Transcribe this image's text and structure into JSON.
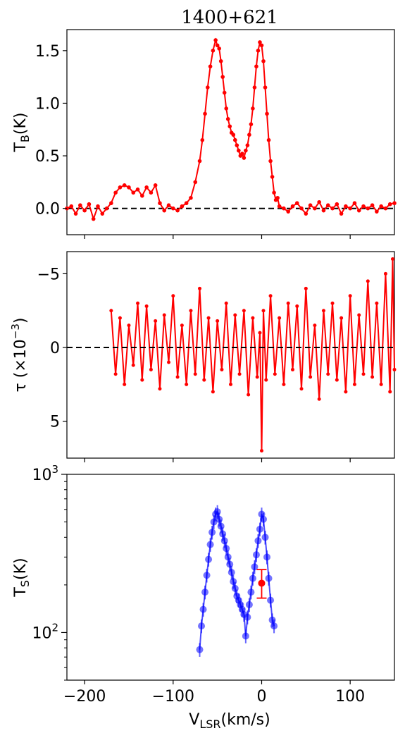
{
  "figure": {
    "title": "1400+621",
    "x_label_main": "V",
    "x_label_sub": "LSR",
    "x_label_unit": "(km/s)"
  },
  "colors": {
    "tb": "#ff0000",
    "tau": "#ff0000",
    "ts": "#0000ff",
    "ts_point": "#ff0000",
    "zero_line": "#000000"
  },
  "chart_data": [
    {
      "panel": "top",
      "type": "line",
      "ylabel_main": "T",
      "ylabel_sub": "B",
      "ylabel_unit": "(K)",
      "xlim": [
        -220,
        150
      ],
      "ylim": [
        -0.25,
        1.7
      ],
      "yticks": [
        0.0,
        0.5,
        1.0,
        1.5
      ],
      "ytick_labels": [
        "0.0",
        "0.5",
        "1.0",
        "1.5"
      ],
      "xticks": [
        -200,
        -100,
        0,
        100
      ],
      "zero_line": true,
      "series": [
        {
          "x": [
            -220,
            -215,
            -210,
            -205,
            -200,
            -195,
            -190,
            -185,
            -180,
            -175,
            -170,
            -165,
            -160,
            -155,
            -150,
            -145,
            -140,
            -135,
            -130,
            -125,
            -120,
            -115,
            -110,
            -105,
            -100,
            -95,
            -90,
            -85,
            -80,
            -75,
            -70,
            -67,
            -64,
            -61,
            -58,
            -55,
            -52,
            -50,
            -48,
            -46,
            -44,
            -42,
            -40,
            -38,
            -36,
            -34,
            -32,
            -30,
            -28,
            -26,
            -24,
            -22,
            -20,
            -18,
            -16,
            -14,
            -12,
            -10,
            -8,
            -6,
            -4,
            -2,
            0,
            2,
            4,
            6,
            8,
            10,
            12,
            14,
            16,
            18,
            20,
            25,
            30,
            35,
            40,
            45,
            50,
            55,
            60,
            65,
            70,
            75,
            80,
            85,
            90,
            95,
            100,
            105,
            110,
            115,
            120,
            125,
            130,
            135,
            140,
            145,
            150
          ],
          "y": [
            0.0,
            0.02,
            -0.05,
            0.03,
            -0.02,
            0.04,
            -0.1,
            0.02,
            -0.05,
            0.0,
            0.05,
            0.15,
            0.2,
            0.22,
            0.2,
            0.15,
            0.18,
            0.12,
            0.2,
            0.15,
            0.22,
            0.05,
            -0.02,
            0.03,
            0.0,
            -0.02,
            0.02,
            0.05,
            0.1,
            0.25,
            0.45,
            0.65,
            0.9,
            1.15,
            1.35,
            1.5,
            1.6,
            1.55,
            1.52,
            1.4,
            1.25,
            1.1,
            0.95,
            0.85,
            0.78,
            0.72,
            0.7,
            0.65,
            0.6,
            0.55,
            0.5,
            0.52,
            0.48,
            0.55,
            0.6,
            0.7,
            0.8,
            0.95,
            1.15,
            1.35,
            1.5,
            1.58,
            1.55,
            1.4,
            1.15,
            0.9,
            0.65,
            0.45,
            0.3,
            0.15,
            0.08,
            0.1,
            0.02,
            0.0,
            -0.03,
            0.02,
            0.05,
            0.0,
            -0.05,
            0.03,
            0.0,
            0.06,
            -0.02,
            0.03,
            0.0,
            0.04,
            -0.05,
            0.02,
            0.0,
            0.05,
            -0.02,
            0.02,
            0.0,
            0.03,
            -0.03,
            0.02,
            0.0,
            0.04,
            0.05
          ]
        }
      ]
    },
    {
      "panel": "middle",
      "type": "line",
      "ylabel": "τ (×10",
      "ylabel_sup": "−3",
      "ylabel_close": ")",
      "xlim": [
        -220,
        150
      ],
      "ylim": [
        7.5,
        -6.5
      ],
      "yticks": [
        -5,
        0,
        5
      ],
      "ytick_labels": [
        "−5",
        "0",
        "5"
      ],
      "xticks": [
        -200,
        -100,
        0,
        100
      ],
      "zero_line": true,
      "series": [
        {
          "x": [
            -170,
            -165,
            -160,
            -155,
            -150,
            -145,
            -140,
            -135,
            -130,
            -125,
            -120,
            -115,
            -110,
            -105,
            -100,
            -95,
            -90,
            -85,
            -80,
            -75,
            -70,
            -65,
            -60,
            -55,
            -50,
            -45,
            -40,
            -35,
            -30,
            -25,
            -20,
            -15,
            -10,
            -5,
            -2,
            0,
            2,
            5,
            10,
            15,
            20,
            25,
            30,
            35,
            40,
            45,
            50,
            55,
            60,
            65,
            70,
            75,
            80,
            85,
            90,
            95,
            100,
            105,
            110,
            115,
            120,
            125,
            130,
            135,
            140,
            145,
            148,
            150
          ],
          "y": [
            -2.5,
            1.8,
            -2.0,
            2.5,
            -1.5,
            1.2,
            -3.0,
            2.2,
            -2.8,
            1.5,
            -1.8,
            2.8,
            -2.2,
            1.0,
            -3.5,
            2.0,
            -1.5,
            2.5,
            -2.5,
            1.8,
            -4.0,
            2.2,
            -2.0,
            3.0,
            -1.8,
            1.5,
            -3.0,
            2.5,
            -2.2,
            1.8,
            -2.5,
            3.2,
            -2.0,
            2.0,
            -1.0,
            7.0,
            -2.5,
            2.2,
            -3.5,
            1.8,
            -2.0,
            2.5,
            -3.0,
            1.5,
            -2.8,
            2.8,
            -4.0,
            2.0,
            -1.5,
            3.5,
            -2.5,
            1.8,
            -3.0,
            2.2,
            -2.0,
            3.0,
            -3.5,
            2.5,
            -2.2,
            1.8,
            -4.5,
            2.0,
            -3.0,
            2.5,
            -5.0,
            3.0,
            -6.0,
            1.5
          ]
        }
      ]
    },
    {
      "panel": "bottom",
      "type": "scatter",
      "ylabel_main": "T",
      "ylabel_sub": "S",
      "ylabel_unit": "(K)",
      "yscale": "log",
      "xlim": [
        -220,
        150
      ],
      "ylim": [
        50,
        1000
      ],
      "ytick_main": [
        100,
        1000
      ],
      "ytick_base": "10",
      "ytick_exps": [
        "2",
        "3"
      ],
      "xticks": [
        -200,
        -100,
        0,
        100
      ],
      "xtick_labels": [
        "−200",
        "−100",
        "0",
        "100"
      ],
      "series": [
        {
          "x": [
            -70,
            -68,
            -66,
            -64,
            -62,
            -60,
            -58,
            -56,
            -54,
            -52,
            -50,
            -48,
            -46,
            -44,
            -42,
            -40,
            -38,
            -36,
            -34,
            -32,
            -30,
            -28,
            -26,
            -24,
            -22,
            -20,
            -18,
            -16,
            -14,
            -12,
            -10,
            -8,
            -6,
            -4,
            -2,
            0,
            2,
            4,
            6,
            8,
            10,
            12,
            14
          ],
          "y": [
            78,
            110,
            140,
            180,
            230,
            290,
            360,
            430,
            500,
            560,
            580,
            520,
            470,
            420,
            380,
            340,
            300,
            270,
            240,
            210,
            190,
            170,
            160,
            150,
            140,
            130,
            95,
            125,
            150,
            180,
            220,
            260,
            310,
            380,
            450,
            560,
            520,
            400,
            300,
            220,
            160,
            120,
            110
          ]
        },
        {
          "name": "",
          "x": [
            0
          ],
          "y": [
            205
          ],
          "yerr_low": [
            165
          ],
          "yerr_high": [
            250
          ]
        }
      ]
    }
  ]
}
